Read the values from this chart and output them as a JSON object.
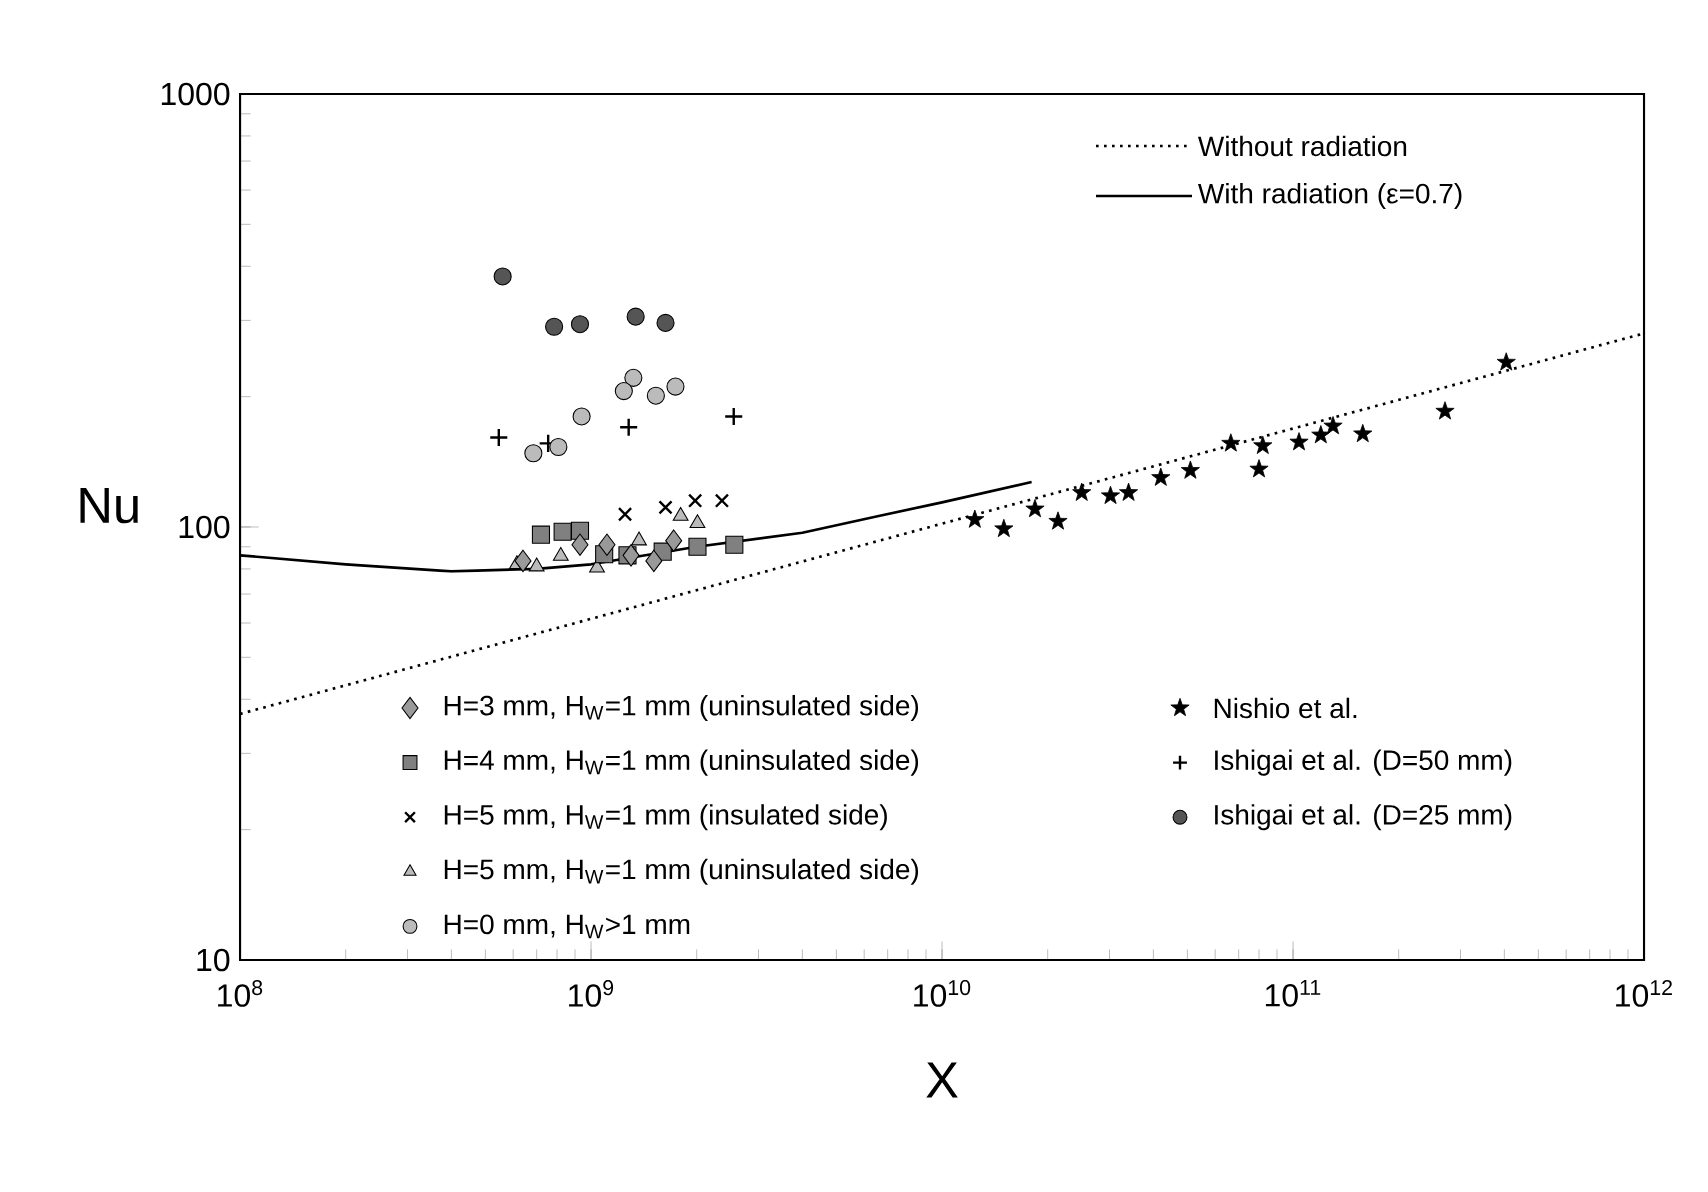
{
  "chart_data": {
    "type": "scatter",
    "xlabel": "X",
    "ylabel": "Nu",
    "log": "xy",
    "grid": false,
    "legend": "bottom",
    "xlim": [
      100000000,
      1000000000000
    ],
    "ylim": [
      10,
      1000
    ],
    "xticks": [
      {
        "value": 100000000,
        "label": "10$^{8}$"
      },
      {
        "value": 1000000000,
        "label": "10$^{9}$"
      },
      {
        "value": 10000000000,
        "label": "10$^{10}$"
      },
      {
        "value": 100000000000,
        "label": "10$^{11}$"
      },
      {
        "value": 1000000000000,
        "label": "10$^{12}$"
      }
    ],
    "yticks": [
      10,
      100,
      1000
    ],
    "series": [
      {
        "name": "Without radiation",
        "type": "line",
        "line_style": "dotted",
        "marker": "none",
        "color": "#000000",
        "x": [
          100000000,
          1000000000000
        ],
        "values": [
          37,
          280
        ]
      },
      {
        "name": "With radiation (ε=0.7)",
        "type": "line",
        "line_style": "solid",
        "marker": "none",
        "color": "#000000",
        "x": [
          100000000,
          200000000,
          400000000,
          700000000,
          1000000000,
          2000000000,
          4000000000,
          6600000000,
          10000000000,
          18000000000
        ],
        "values": [
          86,
          82,
          79,
          80,
          82,
          90,
          97,
          106,
          114,
          127
        ]
      },
      {
        "name": "H=3 mm, H$_{W}$=1 mm (uninsulated side)",
        "marker": "diamond",
        "color": "#999999",
        "x": [
          640000000,
          930000000,
          1110000000,
          1300000000,
          1510000000,
          1720000000
        ],
        "values": [
          83.5,
          91,
          91,
          86,
          83.5,
          93
        ]
      },
      {
        "name": "H=4 mm, H$_{W}$=1 mm (uninsulated side)",
        "marker": "square",
        "color": "#808080",
        "x": [
          720000000,
          830000000,
          930000000,
          1090000000,
          1270000000,
          1600000000,
          2010000000,
          2560000000
        ],
        "values": [
          96,
          97.5,
          98,
          86.5,
          86,
          87.7,
          90,
          91
        ]
      },
      {
        "name": "H=5 mm, H$_{W}$=1 mm (insulated side)",
        "marker": "cross",
        "color": "#000000",
        "x": [
          1250000000,
          1630000000,
          1980000000,
          2360000000
        ],
        "values": [
          107,
          111,
          115,
          115
        ]
      },
      {
        "name": "H=5 mm, H$_{W}$=1 mm (uninsulated side)",
        "marker": "triangle",
        "color": "#bbbbbb",
        "x": [
          615000000,
          700000000,
          820000000,
          1040000000,
          1370000000,
          1800000000,
          2010000000
        ],
        "values": [
          82,
          81,
          85.7,
          80.5,
          93,
          106,
          102
        ]
      },
      {
        "name": "H=0 mm, H$_{W}$>1 mm",
        "marker": "circle",
        "color": "#bbbbbb",
        "x": [
          1320000000,
          1240000000,
          1530000000,
          1740000000,
          940000000,
          685000000,
          807000000
        ],
        "values": [
          221,
          206,
          201,
          211,
          180,
          148,
          153
        ]
      },
      {
        "name": "Nishio et al.",
        "marker": "star",
        "color": "#000000",
        "x": [
          12400000000,
          15000000000,
          18400000000,
          21400000000,
          25000000000,
          30200000000,
          34000000000,
          42000000000,
          51000000000,
          66500000000,
          82000000000,
          80000000000,
          104000000000,
          120000000000,
          130000000000,
          158000000000,
          271000000000,
          405000000000
        ],
        "values": [
          104,
          99,
          110,
          103,
          120,
          118,
          120,
          130,
          135,
          156,
          154,
          136,
          157,
          163,
          171,
          164,
          185,
          240
        ]
      },
      {
        "name": "Ishigai et al. (D=50 mm)",
        "marker": "plus",
        "color": "#000000",
        "x": [
          546000000,
          755000000,
          1280000000,
          2550000000
        ],
        "values": [
          161,
          156,
          170,
          180
        ]
      },
      {
        "name": "Ishigai et al. (D=25 mm)",
        "marker": "circle",
        "color": "#555555",
        "x": [
          560000000,
          785000000,
          930000000,
          1340000000,
          1630000000
        ],
        "values": [
          379,
          290,
          294,
          306,
          296
        ]
      }
    ]
  }
}
